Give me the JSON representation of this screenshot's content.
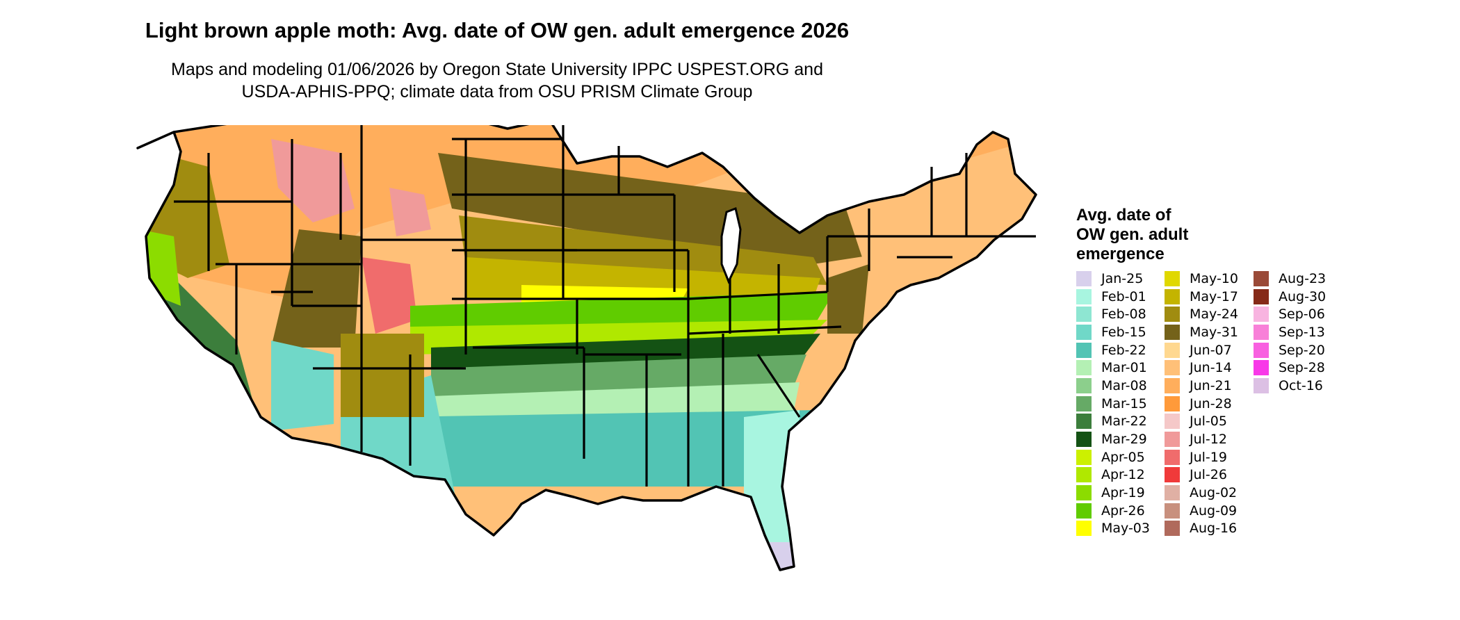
{
  "title": "Light brown apple moth: Avg. date of OW gen. adult emergence 2026",
  "subtitle_lines": [
    "Maps and modeling 01/06/2026 by Oregon State University IPPC USPEST.ORG and",
    "USDA-APHIS-PPQ; climate data from OSU PRISM Climate Group"
  ],
  "legend": {
    "title_lines": [
      "Avg. date of",
      "OW gen. adult",
      "emergence"
    ],
    "items": [
      {
        "label": "Jan-25",
        "color": "#d8d0ec"
      },
      {
        "label": "Feb-01",
        "color": "#a8f5e0"
      },
      {
        "label": "Feb-08",
        "color": "#8ee6d2"
      },
      {
        "label": "Feb-15",
        "color": "#70d8c8"
      },
      {
        "label": "Feb-22",
        "color": "#52c4b4"
      },
      {
        "label": "Mar-01",
        "color": "#b4f0b4"
      },
      {
        "label": "Mar-08",
        "color": "#8ccf8c"
      },
      {
        "label": "Mar-15",
        "color": "#66aa66"
      },
      {
        "label": "Mar-22",
        "color": "#3c7e3c"
      },
      {
        "label": "Mar-29",
        "color": "#145214"
      },
      {
        "label": "Apr-05",
        "color": "#ccf000"
      },
      {
        "label": "Apr-12",
        "color": "#b0e800"
      },
      {
        "label": "Apr-19",
        "color": "#8cdc00"
      },
      {
        "label": "Apr-26",
        "color": "#60cc00"
      },
      {
        "label": "May-03",
        "color": "#ffff00"
      },
      {
        "label": "May-10",
        "color": "#e0d800"
      },
      {
        "label": "May-17",
        "color": "#c4b400"
      },
      {
        "label": "May-24",
        "color": "#a08c10"
      },
      {
        "label": "May-31",
        "color": "#74621a"
      },
      {
        "label": "Jun-07",
        "color": "#ffd890"
      },
      {
        "label": "Jun-14",
        "color": "#ffc078"
      },
      {
        "label": "Jun-21",
        "color": "#ffae5c"
      },
      {
        "label": "Jun-28",
        "color": "#ff9a3a"
      },
      {
        "label": "Jul-05",
        "color": "#f5c8c8"
      },
      {
        "label": "Jul-12",
        "color": "#f09a9a"
      },
      {
        "label": "Jul-19",
        "color": "#f06c6c"
      },
      {
        "label": "Jul-26",
        "color": "#f03a3a"
      },
      {
        "label": "Aug-02",
        "color": "#e0b0a4"
      },
      {
        "label": "Aug-09",
        "color": "#c8907e"
      },
      {
        "label": "Aug-16",
        "color": "#b06a5c"
      },
      {
        "label": "Aug-23",
        "color": "#9a4a38"
      },
      {
        "label": "Aug-30",
        "color": "#862a18"
      },
      {
        "label": "Sep-06",
        "color": "#f8b4e0"
      },
      {
        "label": "Sep-13",
        "color": "#f880d8"
      },
      {
        "label": "Sep-20",
        "color": "#f860e0"
      },
      {
        "label": "Sep-28",
        "color": "#f838e8"
      },
      {
        "label": "Oct-16",
        "color": "#dcc0e4"
      }
    ]
  }
}
